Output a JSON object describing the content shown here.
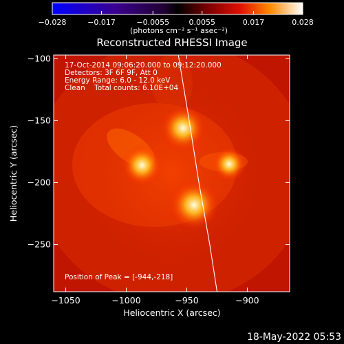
{
  "chart_data": {
    "type": "heatmap",
    "title": "Reconstructed RHESSI Image",
    "xlabel": "Heliocentric X (arcsec)",
    "ylabel": "Heliocentric Y (arcsec)",
    "xlim": [
      -1060,
      -865
    ],
    "ylim": [
      -288,
      -97
    ],
    "x_ticks": [
      -1050,
      -1000,
      -950,
      -900
    ],
    "y_ticks": [
      -100,
      -150,
      -200,
      -250
    ],
    "colorbar": {
      "label": "(photons cm⁻² s⁻¹ asec⁻²)",
      "range": [
        -0.028,
        0.028
      ],
      "ticks": [
        "−0.028",
        "−0.017",
        "−0.0055",
        "0.0055",
        "0.017",
        "0.028"
      ]
    },
    "peak": [
      -944,
      -218
    ],
    "sources": [
      {
        "x": -944,
        "y": -218,
        "value": 0.028
      },
      {
        "x": -953,
        "y": -156,
        "value": 0.024
      },
      {
        "x": -987,
        "y": -186,
        "value": 0.02
      },
      {
        "x": -915,
        "y": -185,
        "value": 0.014
      }
    ],
    "limb": [
      [
        -957,
        -97
      ],
      [
        -948,
        -150
      ],
      [
        -940,
        -200
      ],
      [
        -931,
        -250
      ],
      [
        -925,
        -288
      ]
    ],
    "annotations": {
      "time": "17-Oct-2014 09:06:20.000 to 09:12:20.000",
      "detectors": "Detectors: 3F 6F 9F, Att 0",
      "energy": "Energy Range: 6.0 - 12.0 keV",
      "clean": "Clean    Total counts: 6.10E+04",
      "peak_text": "Position of Peak = [-944,-218]"
    }
  },
  "footer": {
    "timestamp": "18-May-2022 05:53"
  }
}
